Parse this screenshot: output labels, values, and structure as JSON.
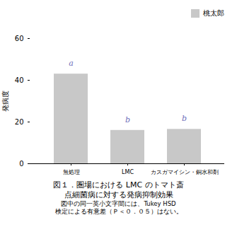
{
  "chart_data": {
    "type": "bar",
    "categories": [
      "無処理",
      "LMC",
      "カスガマイシン・銅水和剤"
    ],
    "series": [
      {
        "name": "桃太郎",
        "color": "#c8c8c8",
        "values": [
          43,
          16,
          16.5
        ]
      }
    ],
    "ylim": [
      0,
      60
    ],
    "yticks": [
      0,
      20,
      40,
      60
    ],
    "ylabel": "発病度",
    "legend": "upper right",
    "annotations": [
      {
        "text": "a",
        "x": "無処理",
        "y": 47,
        "color": "#7070bb"
      },
      {
        "text": "b",
        "x": "LMC",
        "y": 20,
        "color": "#7070bb"
      },
      {
        "text": "b",
        "x": "カスガマイシン・銅水和剤",
        "y": 20.5,
        "color": "#7070bb"
      }
    ],
    "caption": [
      "図１．圏場における LMC のトマト斎",
      "点細菌病に対する発病抑制効果"
    ],
    "notes": [
      "図中の同一英小文字間には、Tukey HSD",
      "検定による有意差（Ｐ＜０．０５）はない。"
    ]
  }
}
